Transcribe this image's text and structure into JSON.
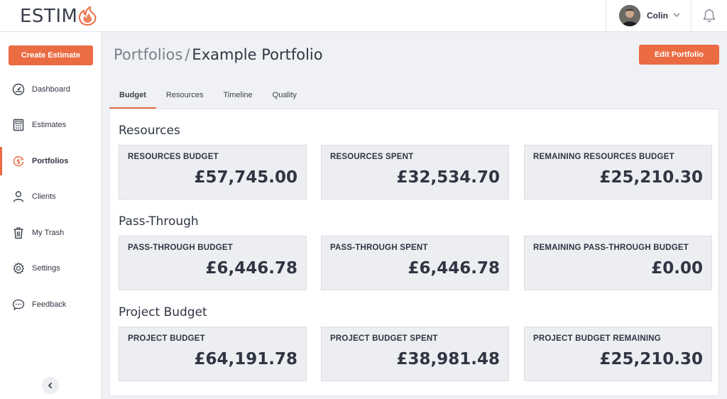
{
  "app": {
    "logo_text": "ESTIM",
    "logo_accent": "#eb6b42"
  },
  "header": {
    "user_name": "Colin"
  },
  "sidebar": {
    "create_label": "Create Estimate",
    "items": [
      {
        "label": "Dashboard",
        "icon": "dashboard-icon"
      },
      {
        "label": "Estimates",
        "icon": "calculator-icon"
      },
      {
        "label": "Portfolios",
        "icon": "portfolio-money-icon"
      },
      {
        "label": "Clients",
        "icon": "user-icon"
      },
      {
        "label": "My Trash",
        "icon": "trash-icon"
      },
      {
        "label": "Settings",
        "icon": "gear-icon"
      },
      {
        "label": "Feedback",
        "icon": "chat-bubble-icon"
      }
    ],
    "active_item": "Portfolios"
  },
  "main": {
    "breadcrumb_parent": "Portfolios",
    "breadcrumb_sep": "/",
    "breadcrumb_current": "Example Portfolio",
    "edit_label": "Edit Portfolio",
    "tabs": [
      {
        "label": "Budget",
        "active": true
      },
      {
        "label": "Resources",
        "active": false
      },
      {
        "label": "Timeline",
        "active": false
      },
      {
        "label": "Quality",
        "active": false
      }
    ],
    "sections": [
      {
        "title": "Resources",
        "cards": [
          {
            "label": "RESOURCES BUDGET",
            "value": "£57,745.00"
          },
          {
            "label": "RESOURCES SPENT",
            "value": "£32,534.70"
          },
          {
            "label": "REMAINING RESOURCES BUDGET",
            "value": "£25,210.30"
          }
        ]
      },
      {
        "title": "Pass-Through",
        "cards": [
          {
            "label": "PASS-THROUGH BUDGET",
            "value": "£6,446.78"
          },
          {
            "label": "PASS-THROUGH SPENT",
            "value": "£6,446.78"
          },
          {
            "label": "REMAINING PASS-THROUGH BUDGET",
            "value": "£0.00"
          }
        ]
      },
      {
        "title": "Project Budget",
        "cards": [
          {
            "label": "PROJECT BUDGET",
            "value": "£64,191.78"
          },
          {
            "label": "PROJECT BUDGET SPENT",
            "value": "£38,981.48"
          },
          {
            "label": "PROJECT BUDGET REMAINING",
            "value": "£25,210.30"
          }
        ]
      }
    ]
  }
}
